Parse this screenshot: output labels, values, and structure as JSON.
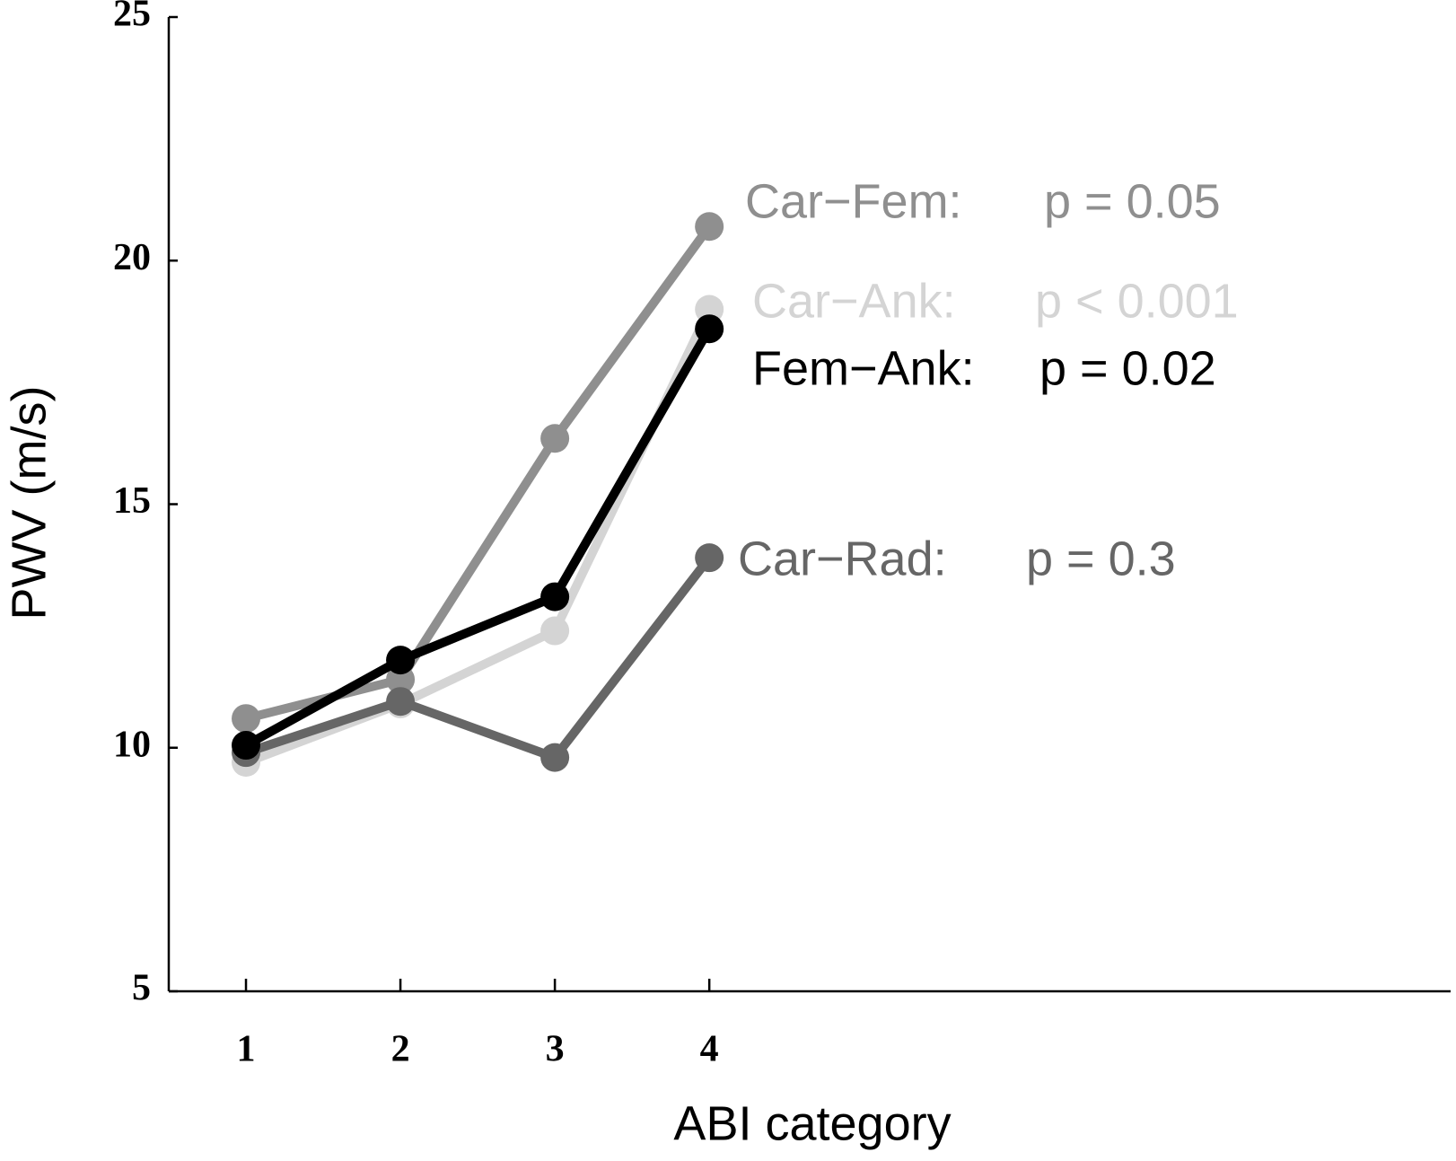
{
  "chart_data": {
    "type": "line",
    "x_label": "ABI category",
    "y_label": "PWV (m/s)",
    "x": [
      1,
      2,
      3,
      4
    ],
    "xlim": [
      0.5,
      8.8
    ],
    "xticks": [
      1,
      2,
      3,
      4
    ],
    "ylim": [
      5,
      25
    ],
    "yticks": [
      5,
      10,
      15,
      20,
      25
    ],
    "series": [
      {
        "name": "Car−Fem:",
        "annotation": "p = 0.05",
        "color": "#8f8f8f",
        "values": [
          10.6,
          11.4,
          16.35,
          20.7
        ]
      },
      {
        "name": "Car−Ank:",
        "annotation": "p < 0.001",
        "color": "#d4d4d4",
        "values": [
          9.7,
          10.9,
          12.4,
          19.0
        ]
      },
      {
        "name": "Car−Rad:",
        "annotation": "p = 0.3",
        "color": "#666666",
        "values": [
          9.9,
          10.95,
          9.8,
          13.9
        ]
      },
      {
        "name": "Fem−Ank:",
        "annotation": "p = 0.02",
        "color": "#000000",
        "values": [
          10.05,
          11.8,
          13.1,
          18.6
        ]
      }
    ]
  }
}
